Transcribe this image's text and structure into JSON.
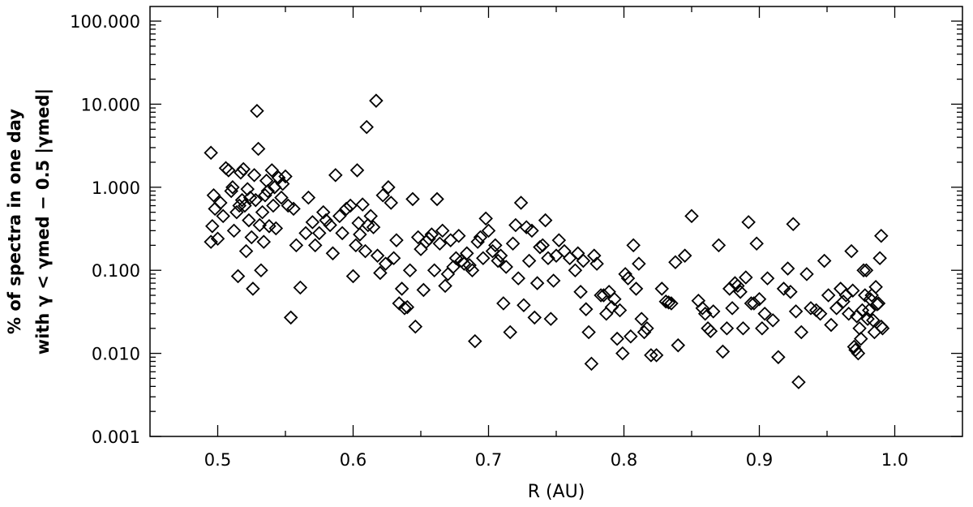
{
  "chart_data": {
    "type": "scatter",
    "marker": "diamond",
    "xlabel": "R (AU)",
    "ylabel_lines": [
      "% of spectra in one day",
      "with γ < γmed − 0.5 |γmed|"
    ],
    "y_scale": "log",
    "xlim": [
      0.45,
      1.05
    ],
    "ylim": [
      0.001,
      150
    ],
    "x_ticks": [
      {
        "value": 0.5,
        "label": "0.5"
      },
      {
        "value": 0.6,
        "label": "0.6"
      },
      {
        "value": 0.7,
        "label": "0.7"
      },
      {
        "value": 0.8,
        "label": "0.8"
      },
      {
        "value": 0.9,
        "label": "0.9"
      },
      {
        "value": 1.0,
        "label": "1.0"
      }
    ],
    "y_ticks": [
      {
        "value": 100,
        "label": "100.000"
      },
      {
        "value": 10,
        "label": "10.000"
      },
      {
        "value": 1,
        "label": "1.000"
      },
      {
        "value": 0.1,
        "label": "0.100"
      },
      {
        "value": 0.01,
        "label": "0.010"
      },
      {
        "value": 0.001,
        "label": "0.001"
      }
    ],
    "points": [
      [
        0.495,
        2.6
      ],
      [
        0.497,
        0.8
      ],
      [
        0.498,
        0.55
      ],
      [
        0.496,
        0.34
      ],
      [
        0.495,
        0.22
      ],
      [
        0.5,
        0.24
      ],
      [
        0.502,
        0.65
      ],
      [
        0.504,
        0.45
      ],
      [
        0.506,
        1.7
      ],
      [
        0.508,
        1.6
      ],
      [
        0.51,
        0.9
      ],
      [
        0.511,
        1.0
      ],
      [
        0.512,
        0.3
      ],
      [
        0.514,
        0.5
      ],
      [
        0.515,
        0.085
      ],
      [
        0.516,
        0.6
      ],
      [
        0.517,
        1.5
      ],
      [
        0.518,
        0.7
      ],
      [
        0.519,
        1.65
      ],
      [
        0.52,
        0.6
      ],
      [
        0.521,
        0.17
      ],
      [
        0.522,
        0.95
      ],
      [
        0.523,
        0.4
      ],
      [
        0.524,
        0.75
      ],
      [
        0.525,
        0.25
      ],
      [
        0.526,
        0.06
      ],
      [
        0.527,
        1.4
      ],
      [
        0.528,
        0.7
      ],
      [
        0.529,
        8.3
      ],
      [
        0.53,
        2.9
      ],
      [
        0.531,
        0.35
      ],
      [
        0.532,
        0.1
      ],
      [
        0.533,
        0.5
      ],
      [
        0.534,
        0.22
      ],
      [
        0.535,
        0.8
      ],
      [
        0.536,
        1.2
      ],
      [
        0.537,
        0.9
      ],
      [
        0.538,
        0.34
      ],
      [
        0.54,
        1.6
      ],
      [
        0.541,
        0.6
      ],
      [
        0.542,
        1.0
      ],
      [
        0.543,
        0.32
      ],
      [
        0.545,
        1.3
      ],
      [
        0.547,
        0.75
      ],
      [
        0.548,
        1.1
      ],
      [
        0.55,
        1.35
      ],
      [
        0.552,
        0.6
      ],
      [
        0.554,
        0.027
      ],
      [
        0.556,
        0.55
      ],
      [
        0.558,
        0.2
      ],
      [
        0.561,
        0.062
      ],
      [
        0.565,
        0.28
      ],
      [
        0.567,
        0.75
      ],
      [
        0.57,
        0.38
      ],
      [
        0.572,
        0.2
      ],
      [
        0.575,
        0.28
      ],
      [
        0.578,
        0.5
      ],
      [
        0.58,
        0.4
      ],
      [
        0.583,
        0.35
      ],
      [
        0.585,
        0.16
      ],
      [
        0.587,
        1.4
      ],
      [
        0.59,
        0.45
      ],
      [
        0.592,
        0.28
      ],
      [
        0.595,
        0.55
      ],
      [
        0.598,
        0.6
      ],
      [
        0.6,
        0.085
      ],
      [
        0.602,
        0.2
      ],
      [
        0.603,
        1.6
      ],
      [
        0.604,
        0.37
      ],
      [
        0.605,
        0.27
      ],
      [
        0.607,
        0.62
      ],
      [
        0.609,
        0.17
      ],
      [
        0.61,
        5.3
      ],
      [
        0.611,
        0.35
      ],
      [
        0.613,
        0.45
      ],
      [
        0.615,
        0.33
      ],
      [
        0.617,
        11.0
      ],
      [
        0.618,
        0.15
      ],
      [
        0.62,
        0.093
      ],
      [
        0.622,
        0.8
      ],
      [
        0.624,
        0.12
      ],
      [
        0.626,
        1.0
      ],
      [
        0.628,
        0.65
      ],
      [
        0.63,
        0.14
      ],
      [
        0.632,
        0.23
      ],
      [
        0.634,
        0.04
      ],
      [
        0.636,
        0.06
      ],
      [
        0.638,
        0.035
      ],
      [
        0.64,
        0.036
      ],
      [
        0.642,
        0.1
      ],
      [
        0.644,
        0.72
      ],
      [
        0.646,
        0.021
      ],
      [
        0.648,
        0.25
      ],
      [
        0.65,
        0.18
      ],
      [
        0.652,
        0.058
      ],
      [
        0.654,
        0.22
      ],
      [
        0.656,
        0.24
      ],
      [
        0.658,
        0.27
      ],
      [
        0.66,
        0.1
      ],
      [
        0.662,
        0.72
      ],
      [
        0.664,
        0.21
      ],
      [
        0.666,
        0.3
      ],
      [
        0.668,
        0.065
      ],
      [
        0.67,
        0.09
      ],
      [
        0.672,
        0.23
      ],
      [
        0.674,
        0.11
      ],
      [
        0.676,
        0.14
      ],
      [
        0.678,
        0.26
      ],
      [
        0.68,
        0.13
      ],
      [
        0.682,
        0.12
      ],
      [
        0.684,
        0.16
      ],
      [
        0.686,
        0.115
      ],
      [
        0.688,
        0.1
      ],
      [
        0.69,
        0.014
      ],
      [
        0.692,
        0.22
      ],
      [
        0.694,
        0.25
      ],
      [
        0.696,
        0.14
      ],
      [
        0.698,
        0.42
      ],
      [
        0.7,
        0.3
      ],
      [
        0.703,
        0.17
      ],
      [
        0.705,
        0.2
      ],
      [
        0.707,
        0.13
      ],
      [
        0.709,
        0.15
      ],
      [
        0.711,
        0.04
      ],
      [
        0.713,
        0.11
      ],
      [
        0.716,
        0.018
      ],
      [
        0.718,
        0.21
      ],
      [
        0.72,
        0.35
      ],
      [
        0.722,
        0.08
      ],
      [
        0.724,
        0.65
      ],
      [
        0.726,
        0.038
      ],
      [
        0.728,
        0.33
      ],
      [
        0.73,
        0.13
      ],
      [
        0.732,
        0.3
      ],
      [
        0.734,
        0.027
      ],
      [
        0.736,
        0.07
      ],
      [
        0.738,
        0.19
      ],
      [
        0.74,
        0.2
      ],
      [
        0.742,
        0.4
      ],
      [
        0.744,
        0.14
      ],
      [
        0.746,
        0.026
      ],
      [
        0.748,
        0.075
      ],
      [
        0.75,
        0.15
      ],
      [
        0.752,
        0.23
      ],
      [
        0.756,
        0.17
      ],
      [
        0.76,
        0.14
      ],
      [
        0.764,
        0.1
      ],
      [
        0.766,
        0.16
      ],
      [
        0.768,
        0.055
      ],
      [
        0.77,
        0.13
      ],
      [
        0.772,
        0.034
      ],
      [
        0.774,
        0.018
      ],
      [
        0.776,
        0.0075
      ],
      [
        0.778,
        0.15
      ],
      [
        0.78,
        0.12
      ],
      [
        0.783,
        0.05
      ],
      [
        0.785,
        0.05
      ],
      [
        0.787,
        0.03
      ],
      [
        0.789,
        0.055
      ],
      [
        0.791,
        0.036
      ],
      [
        0.793,
        0.045
      ],
      [
        0.795,
        0.015
      ],
      [
        0.797,
        0.033
      ],
      [
        0.799,
        0.01
      ],
      [
        0.801,
        0.09
      ],
      [
        0.803,
        0.08
      ],
      [
        0.805,
        0.016
      ],
      [
        0.807,
        0.2
      ],
      [
        0.809,
        0.06
      ],
      [
        0.811,
        0.12
      ],
      [
        0.813,
        0.026
      ],
      [
        0.815,
        0.018
      ],
      [
        0.817,
        0.02
      ],
      [
        0.82,
        0.0095
      ],
      [
        0.824,
        0.0095
      ],
      [
        0.828,
        0.06
      ],
      [
        0.831,
        0.042
      ],
      [
        0.833,
        0.041
      ],
      [
        0.835,
        0.04
      ],
      [
        0.838,
        0.125
      ],
      [
        0.84,
        0.0125
      ],
      [
        0.845,
        0.15
      ],
      [
        0.85,
        0.45
      ],
      [
        0.855,
        0.043
      ],
      [
        0.858,
        0.035
      ],
      [
        0.86,
        0.03
      ],
      [
        0.862,
        0.02
      ],
      [
        0.864,
        0.0185
      ],
      [
        0.866,
        0.032
      ],
      [
        0.87,
        0.2
      ],
      [
        0.873,
        0.0105
      ],
      [
        0.876,
        0.02
      ],
      [
        0.878,
        0.06
      ],
      [
        0.88,
        0.035
      ],
      [
        0.882,
        0.07
      ],
      [
        0.884,
        0.065
      ],
      [
        0.886,
        0.055
      ],
      [
        0.888,
        0.02
      ],
      [
        0.89,
        0.082
      ],
      [
        0.892,
        0.38
      ],
      [
        0.894,
        0.04
      ],
      [
        0.896,
        0.04
      ],
      [
        0.898,
        0.21
      ],
      [
        0.9,
        0.045
      ],
      [
        0.902,
        0.02
      ],
      [
        0.904,
        0.03
      ],
      [
        0.906,
        0.08
      ],
      [
        0.91,
        0.025
      ],
      [
        0.914,
        0.009
      ],
      [
        0.918,
        0.06
      ],
      [
        0.921,
        0.105
      ],
      [
        0.923,
        0.055
      ],
      [
        0.925,
        0.36
      ],
      [
        0.927,
        0.032
      ],
      [
        0.929,
        0.0045
      ],
      [
        0.931,
        0.018
      ],
      [
        0.935,
        0.09
      ],
      [
        0.938,
        0.035
      ],
      [
        0.942,
        0.033
      ],
      [
        0.945,
        0.03
      ],
      [
        0.948,
        0.13
      ],
      [
        0.951,
        0.05
      ],
      [
        0.953,
        0.022
      ],
      [
        0.957,
        0.035
      ],
      [
        0.96,
        0.06
      ],
      [
        0.962,
        0.042
      ],
      [
        0.964,
        0.05
      ],
      [
        0.966,
        0.03
      ],
      [
        0.968,
        0.17
      ],
      [
        0.969,
        0.057
      ],
      [
        0.97,
        0.012
      ],
      [
        0.971,
        0.011
      ],
      [
        0.972,
        0.028
      ],
      [
        0.973,
        0.01
      ],
      [
        0.974,
        0.02
      ],
      [
        0.975,
        0.015
      ],
      [
        0.976,
        0.033
      ],
      [
        0.977,
        0.1
      ],
      [
        0.978,
        0.05
      ],
      [
        0.979,
        0.1
      ],
      [
        0.98,
        0.026
      ],
      [
        0.981,
        0.033
      ],
      [
        0.982,
        0.045
      ],
      [
        0.983,
        0.05
      ],
      [
        0.984,
        0.025
      ],
      [
        0.985,
        0.018
      ],
      [
        0.986,
        0.063
      ],
      [
        0.987,
        0.039
      ],
      [
        0.988,
        0.04
      ],
      [
        0.989,
        0.14
      ],
      [
        0.99,
        0.26
      ],
      [
        0.99,
        0.021
      ],
      [
        0.991,
        0.02
      ]
    ]
  }
}
